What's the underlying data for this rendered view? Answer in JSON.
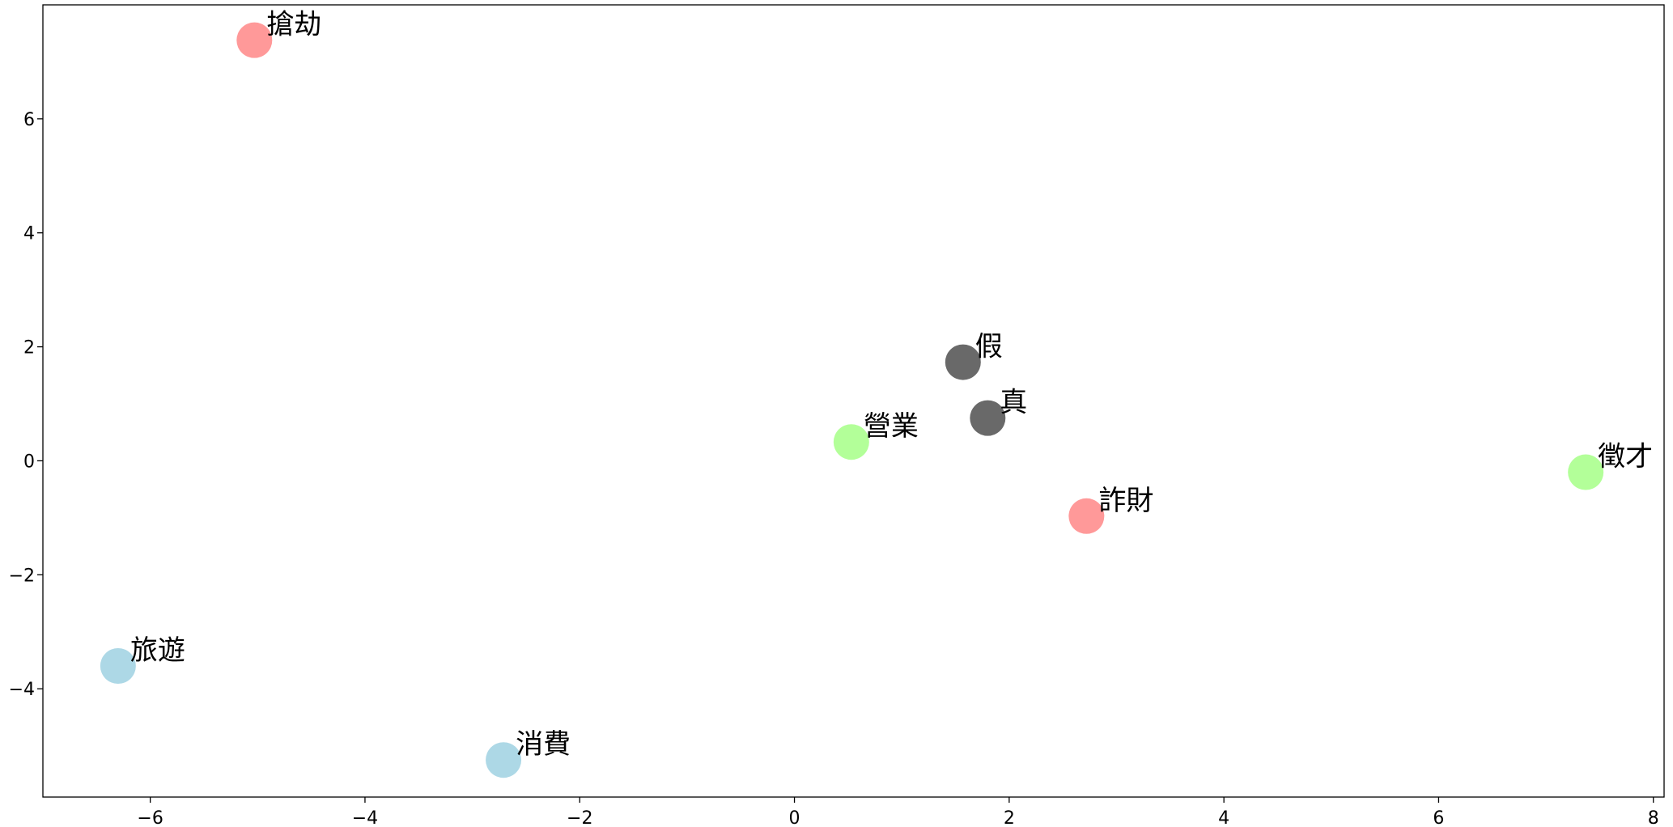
{
  "chart_data": {
    "type": "scatter",
    "title": "",
    "xlabel": "",
    "ylabel": "",
    "xlim": [
      -7.0,
      8.1
    ],
    "ylim": [
      -5.9,
      8.0
    ],
    "xticks": [
      -6,
      -4,
      -2,
      0,
      2,
      4,
      6,
      8
    ],
    "yticks": [
      -4,
      -2,
      0,
      2,
      4,
      6
    ],
    "grid": false,
    "points": [
      {
        "label": "搶劫",
        "x": -5.03,
        "y": 7.38,
        "color": "#ff9999"
      },
      {
        "label": "詐財",
        "x": 2.72,
        "y": -0.97,
        "color": "#ff9999"
      },
      {
        "label": "假",
        "x": 1.57,
        "y": 1.73,
        "color": "#696969"
      },
      {
        "label": "真",
        "x": 1.8,
        "y": 0.75,
        "color": "#696969"
      },
      {
        "label": "營業",
        "x": 0.53,
        "y": 0.33,
        "color": "#b3ff99"
      },
      {
        "label": "徵才",
        "x": 7.37,
        "y": -0.2,
        "color": "#b3ff99"
      },
      {
        "label": "旅遊",
        "x": -6.3,
        "y": -3.6,
        "color": "#add8e6"
      },
      {
        "label": "消費",
        "x": -2.71,
        "y": -5.25,
        "color": "#add8e6"
      }
    ]
  }
}
